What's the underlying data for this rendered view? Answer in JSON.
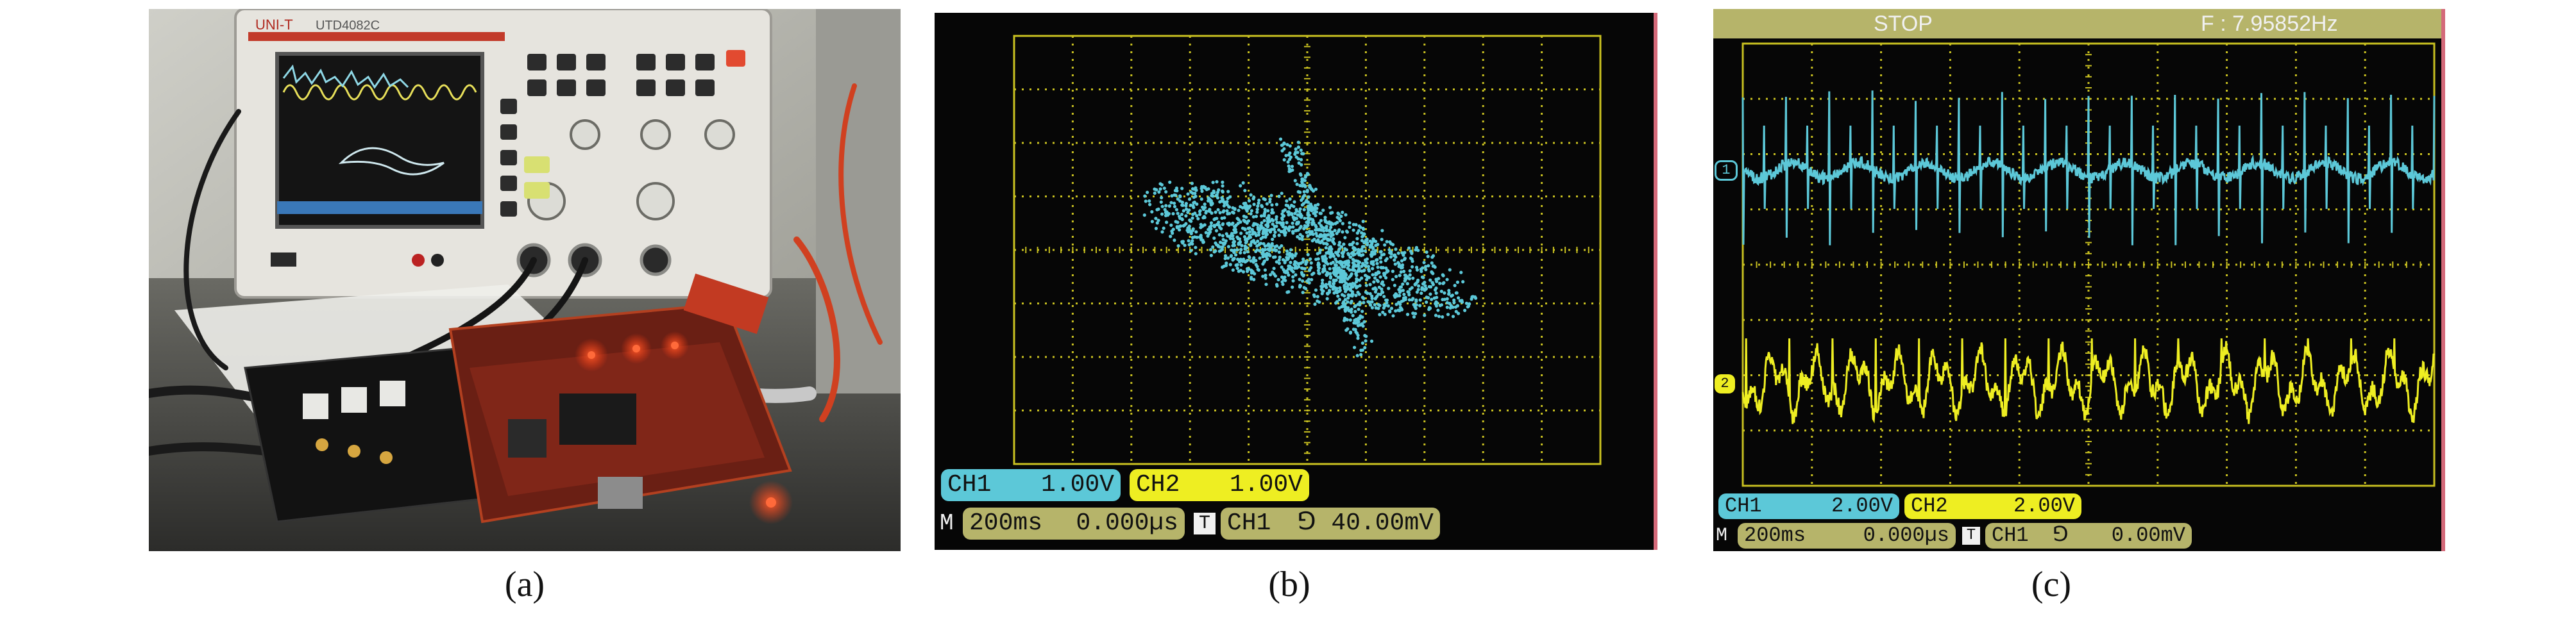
{
  "captions": {
    "a": "(a)",
    "b": "(b)",
    "c": "(c)"
  },
  "photo": {
    "scope_brand": "UNI-T",
    "scope_model": "UTD4082C"
  },
  "scope_b": {
    "ch1_label": "CH1",
    "ch1_scale": "1.00V",
    "ch2_label": "CH2",
    "ch2_scale": "1.00V",
    "m_label": "M",
    "timebase": "200ms",
    "position": "0.000µs",
    "trigger_badge": "T",
    "trigger_source": "CH1",
    "trigger_slope": "⅁",
    "trigger_level": "40.00mV",
    "mode": "XY",
    "colors": {
      "trace": "#5cc8d8",
      "grid": "#c8c020",
      "ch1": "#5cc8d8",
      "ch2": "#eeee22",
      "info": "#b6b46a"
    }
  },
  "scope_c": {
    "status": "STOP",
    "frequency": "F : 7.95852Hz",
    "ch1_label": "CH1",
    "ch1_scale": "2.00V",
    "ch2_label": "CH2",
    "ch2_scale": "2.00V",
    "m_label": "M",
    "timebase": "200ms",
    "position": "0.000µs",
    "trigger_badge": "T",
    "trigger_source": "CH1",
    "trigger_slope": "⅁",
    "trigger_level": "0.00mV",
    "marker_1": "1",
    "marker_2": "2",
    "colors": {
      "ch1": "#5cc8d8",
      "ch2": "#eeee22",
      "grid": "#c8c020",
      "topbar": "#b6b46a"
    }
  }
}
